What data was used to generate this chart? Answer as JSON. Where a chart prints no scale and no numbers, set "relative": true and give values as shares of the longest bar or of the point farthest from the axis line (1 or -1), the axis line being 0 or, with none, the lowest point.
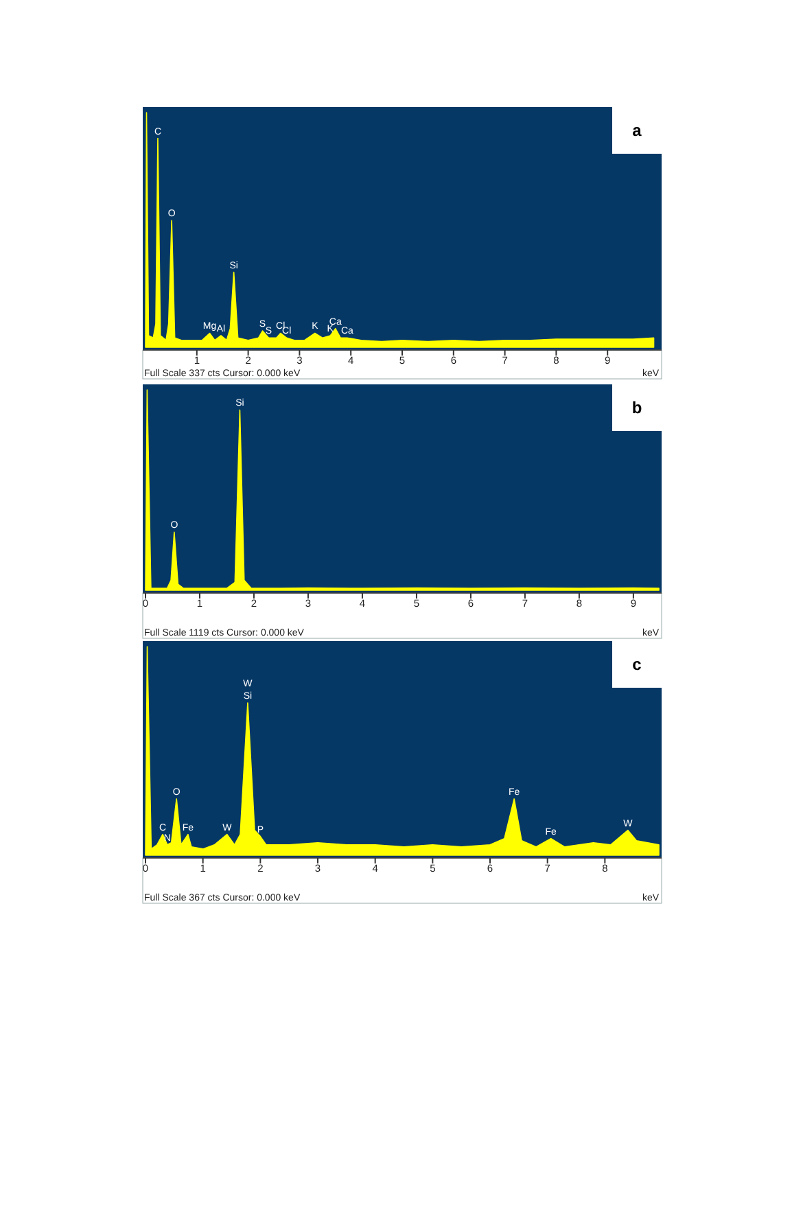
{
  "chart_data": [
    {
      "type": "area",
      "title": "a",
      "xlabel": "keV",
      "relative": true,
      "xlim": [
        0,
        10
      ],
      "xticks": [
        1,
        2,
        3,
        4,
        5,
        6,
        7,
        8,
        9
      ],
      "x": [
        0,
        0.02,
        0.06,
        0.15,
        0.2,
        0.24,
        0.29,
        0.4,
        0.45,
        0.51,
        0.57,
        0.7,
        0.9,
        1.1,
        1.25,
        1.35,
        1.47,
        1.58,
        1.65,
        1.72,
        1.8,
        2.0,
        2.2,
        2.28,
        2.4,
        2.55,
        2.63,
        2.75,
        2.9,
        3.1,
        3.3,
        3.45,
        3.6,
        3.7,
        3.8,
        3.93,
        4.2,
        4.6,
        5,
        5.5,
        6,
        6.5,
        7,
        7.5,
        8,
        8.5,
        9,
        9.5,
        9.9
      ],
      "series": [
        {
          "color": "#ffff00",
          "values": [
            0,
            1,
            0.05,
            0.04,
            0.1,
            0.89,
            0.05,
            0.03,
            0.1,
            0.54,
            0.04,
            0.03,
            0.03,
            0.03,
            0.06,
            0.03,
            0.05,
            0.03,
            0.08,
            0.32,
            0.04,
            0.03,
            0.04,
            0.07,
            0.04,
            0.04,
            0.06,
            0.04,
            0.03,
            0.03,
            0.06,
            0.04,
            0.05,
            0.08,
            0.04,
            0.04,
            0.03,
            0.025,
            0.03,
            0.025,
            0.03,
            0.025,
            0.03,
            0.03,
            0.035,
            0.035,
            0.035,
            0.035,
            0.04
          ]
        }
      ],
      "annotations": [
        {
          "text": "C",
          "x": 0.24,
          "y": 0.89
        },
        {
          "text": "O",
          "x": 0.51,
          "y": 0.54
        },
        {
          "text": "Si",
          "x": 1.72,
          "y": 0.32
        },
        {
          "text": "Mg",
          "x": 1.25,
          "y": 0.06
        },
        {
          "text": "Al",
          "x": 1.47,
          "y": 0.05
        },
        {
          "text": "S",
          "x": 2.28,
          "y": 0.07
        },
        {
          "text": "S",
          "x": 2.4,
          "y": 0.04
        },
        {
          "text": "Cl",
          "x": 2.63,
          "y": 0.06
        },
        {
          "text": "Cl",
          "x": 2.75,
          "y": 0.04
        },
        {
          "text": "K",
          "x": 3.3,
          "y": 0.06
        },
        {
          "text": "K",
          "x": 3.6,
          "y": 0.05
        },
        {
          "text": "Ca",
          "x": 3.7,
          "y": 0.08
        },
        {
          "text": "Ca",
          "x": 3.93,
          "y": 0.04
        },
        "Full Scale 337 cts  Cursor: 0.000 keV"
      ]
    },
    {
      "type": "area",
      "title": "b",
      "xlabel": "keV",
      "relative": true,
      "xlim": [
        0,
        9.47
      ],
      "xticks": [
        0,
        1,
        2,
        3,
        4,
        5,
        6,
        7,
        8,
        9
      ],
      "x": [
        0,
        0.03,
        0.1,
        0.4,
        0.47,
        0.53,
        0.6,
        0.7,
        1.0,
        1.5,
        1.65,
        1.74,
        1.82,
        1.95,
        2.5,
        3,
        4,
        5,
        6,
        7,
        8,
        9,
        9.47
      ],
      "series": [
        {
          "color": "#ffff00",
          "values": [
            0,
            1,
            0.01,
            0.01,
            0.05,
            0.29,
            0.03,
            0.01,
            0.01,
            0.01,
            0.04,
            0.9,
            0.05,
            0.01,
            0.01,
            0.012,
            0.01,
            0.012,
            0.01,
            0.012,
            0.01,
            0.012,
            0.01
          ]
        }
      ],
      "annotations": [
        {
          "text": "Si",
          "x": 1.74,
          "y": 0.9
        },
        {
          "text": "O",
          "x": 0.53,
          "y": 0.29
        },
        "Full Scale 1119 cts  Cursor: 0.000 keV"
      ]
    },
    {
      "type": "area",
      "title": "c",
      "xlabel": "keV",
      "relative": true,
      "xlim": [
        0,
        8.94
      ],
      "xticks": [
        0,
        1,
        2,
        3,
        4,
        5,
        6,
        7,
        8
      ],
      "x": [
        0,
        0.03,
        0.1,
        0.2,
        0.3,
        0.38,
        0.45,
        0.54,
        0.62,
        0.74,
        0.8,
        1.0,
        1.2,
        1.42,
        1.55,
        1.65,
        1.78,
        1.9,
        2.0,
        2.1,
        2.5,
        3,
        3.5,
        4,
        4.5,
        5,
        5.5,
        6,
        6.25,
        6.42,
        6.55,
        6.8,
        7.06,
        7.3,
        7.8,
        8.1,
        8.4,
        8.55,
        8.94
      ],
      "series": [
        {
          "color": "#ffff00",
          "values": [
            0,
            1,
            0.03,
            0.05,
            0.1,
            0.05,
            0.06,
            0.27,
            0.05,
            0.1,
            0.04,
            0.03,
            0.05,
            0.1,
            0.05,
            0.1,
            0.73,
            0.12,
            0.09,
            0.05,
            0.05,
            0.06,
            0.05,
            0.05,
            0.04,
            0.05,
            0.04,
            0.05,
            0.08,
            0.27,
            0.07,
            0.04,
            0.08,
            0.04,
            0.06,
            0.05,
            0.12,
            0.07,
            0.05
          ]
        }
      ],
      "annotations": [
        {
          "text": "Si",
          "x": 1.78,
          "y": 0.73
        },
        {
          "text": "W",
          "x": 1.78,
          "y": 0.73
        },
        {
          "text": "O",
          "x": 0.54,
          "y": 0.27
        },
        {
          "text": "C",
          "x": 0.3,
          "y": 0.1
        },
        {
          "text": "N",
          "x": 0.38,
          "y": 0.05
        },
        {
          "text": "Fe",
          "x": 0.74,
          "y": 0.1
        },
        {
          "text": "W",
          "x": 1.42,
          "y": 0.1
        },
        {
          "text": "P",
          "x": 2.0,
          "y": 0.09
        },
        {
          "text": "Fe",
          "x": 6.42,
          "y": 0.27
        },
        {
          "text": "Fe",
          "x": 7.06,
          "y": 0.08
        },
        {
          "text": "W",
          "x": 8.4,
          "y": 0.12
        },
        "Full Scale 367 cts  Cursor: 0.000 keV"
      ]
    }
  ]
}
